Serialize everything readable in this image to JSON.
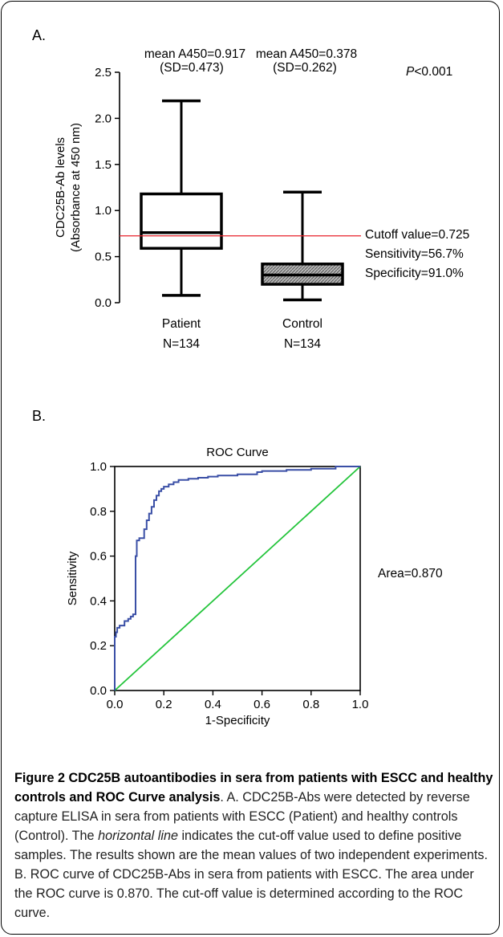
{
  "panel_a": {
    "label": "A.",
    "patient_mean": "mean A450=0.917",
    "patient_sd": "(SD=0.473)",
    "control_mean": "mean A450=0.378",
    "control_sd": "(SD=0.262)",
    "p_value_symbol": "P",
    "p_value_rest": "<0.001",
    "cutoff_label": "Cutoff value=0.725",
    "sensitivity_label": "Sensitivity=56.7%",
    "specificity_label": "Specificity=91.0%",
    "patient_n": "N=134",
    "control_n": "N=134"
  },
  "panel_b": {
    "label": "B.",
    "area_label": "Area=0.870"
  },
  "caption": {
    "title": "Figure 2 CDC25B autoantibodies in sera from patients with ESCC and healthy controls and ROC Curve analysis",
    "text_before_italic": ". A. CDC25B-Abs were detected by reverse capture ELISA in sera from patients with ESCC (Patient) and healthy controls (Control). The ",
    "italic": "horizontal line",
    "text_after_italic": " indicates the cut-off value used to define positive samples. The results shown are the mean values of two independent experiments. B. ROC curve of CDC25B-Abs in sera from patients with ESCC. The area under the ROC curve is 0.870. The cut-off value is determined according to the ROC curve."
  },
  "chart_data": [
    {
      "type": "box",
      "ylabel_line1": "CDC25B-Ab levels",
      "ylabel_line2": "(Absorbance at 450 nm)",
      "ylim": [
        0,
        2.5
      ],
      "yticks": [
        "0.0",
        "0.5",
        "1.0",
        "1.5",
        "2.0",
        "2.5"
      ],
      "categories": [
        "Patient",
        "Control"
      ],
      "boxes": [
        {
          "name": "Patient",
          "min": 0.08,
          "q1": 0.59,
          "median": 0.76,
          "q3": 1.18,
          "max": 2.19,
          "fill": "#ffffff"
        },
        {
          "name": "Control",
          "min": 0.03,
          "q1": 0.2,
          "median": 0.3,
          "q3": 0.42,
          "max": 1.2,
          "fill": "#b8b8b8"
        }
      ],
      "cutoff": 0.725,
      "cutoff_color": "#e8202a"
    },
    {
      "type": "line",
      "title": "ROC Curve",
      "xlabel": "1-Specificity",
      "ylabel": "Sensitivity",
      "xlim": [
        0,
        1
      ],
      "ylim": [
        0,
        1
      ],
      "xticks": [
        "0.0",
        "0.2",
        "0.4",
        "0.6",
        "0.8",
        "1.0"
      ],
      "yticks": [
        "0.0",
        "0.2",
        "0.4",
        "0.6",
        "0.8",
        "1.0"
      ],
      "series": [
        {
          "color": "#3a4fa6",
          "x": [
            0,
            0,
            0.005,
            0.005,
            0.01,
            0.01,
            0.02,
            0.02,
            0.04,
            0.04,
            0.055,
            0.055,
            0.065,
            0.065,
            0.075,
            0.075,
            0.085,
            0.085,
            0.09,
            0.09,
            0.1,
            0.1,
            0.12,
            0.12,
            0.13,
            0.13,
            0.14,
            0.14,
            0.15,
            0.15,
            0.16,
            0.16,
            0.17,
            0.17,
            0.18,
            0.18,
            0.19,
            0.19,
            0.2,
            0.2,
            0.22,
            0.22,
            0.24,
            0.24,
            0.26,
            0.26,
            0.3,
            0.3,
            0.34,
            0.34,
            0.38,
            0.38,
            0.42,
            0.42,
            0.5,
            0.5,
            0.58,
            0.58,
            0.6,
            0.6,
            0.7,
            0.7,
            0.8,
            0.8,
            0.9,
            0.9,
            1.0
          ],
          "y": [
            0,
            0.24,
            0.24,
            0.26,
            0.26,
            0.28,
            0.28,
            0.29,
            0.29,
            0.31,
            0.31,
            0.32,
            0.32,
            0.33,
            0.33,
            0.34,
            0.34,
            0.6,
            0.6,
            0.67,
            0.67,
            0.68,
            0.68,
            0.72,
            0.72,
            0.76,
            0.76,
            0.79,
            0.79,
            0.82,
            0.82,
            0.85,
            0.85,
            0.87,
            0.87,
            0.89,
            0.89,
            0.9,
            0.9,
            0.91,
            0.91,
            0.92,
            0.92,
            0.93,
            0.93,
            0.94,
            0.94,
            0.945,
            0.945,
            0.95,
            0.95,
            0.955,
            0.955,
            0.96,
            0.96,
            0.965,
            0.965,
            0.975,
            0.975,
            0.98,
            0.98,
            0.985,
            0.985,
            0.99,
            0.99,
            1.0,
            1.0
          ]
        },
        {
          "color": "#22c43a",
          "x": [
            0,
            1
          ],
          "y": [
            0,
            1
          ]
        }
      ]
    }
  ]
}
